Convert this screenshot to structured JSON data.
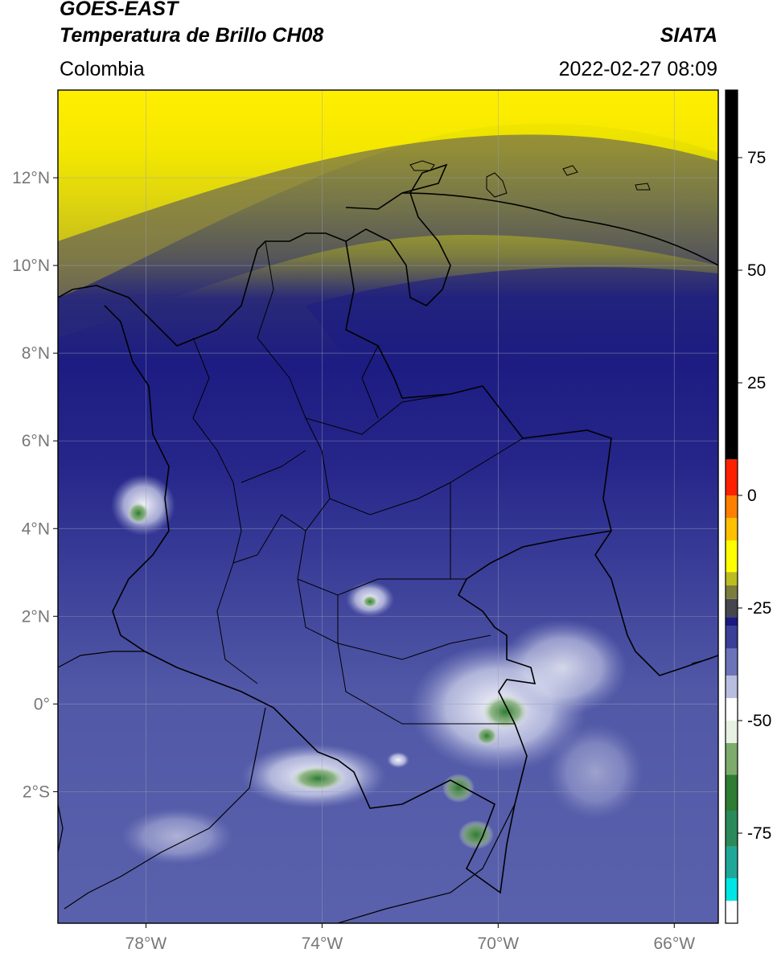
{
  "header": {
    "satellite": "GOES-EAST",
    "product": "Temperatura de Brillo CH08",
    "organization": "SIATA",
    "region": "Colombia",
    "datetime": "2022-02-27 08:09"
  },
  "map": {
    "lon_range": [
      -80,
      -65
    ],
    "lat_range": [
      -5,
      14
    ],
    "lat_ticks": [
      {
        "value": 12,
        "label": "12°N"
      },
      {
        "value": 10,
        "label": "10°N"
      },
      {
        "value": 8,
        "label": "8°N"
      },
      {
        "value": 6,
        "label": "6°N"
      },
      {
        "value": 4,
        "label": "4°N"
      },
      {
        "value": 2,
        "label": "2°N"
      },
      {
        "value": 0,
        "label": "0°"
      },
      {
        "value": -2,
        "label": "2°S"
      }
    ],
    "lon_ticks": [
      {
        "value": -78,
        "label": "78°W"
      },
      {
        "value": -74,
        "label": "74°W"
      },
      {
        "value": -70,
        "label": "70°W"
      },
      {
        "value": -66,
        "label": "66°W"
      }
    ],
    "gridlines": true
  },
  "colorbar": {
    "range": [
      -95,
      90
    ],
    "ticks": [
      {
        "value": 75,
        "label": "75"
      },
      {
        "value": 50,
        "label": "50"
      },
      {
        "value": 25,
        "label": "25"
      },
      {
        "value": 0,
        "label": "0"
      },
      {
        "value": -25,
        "label": "-25"
      },
      {
        "value": -50,
        "label": "-50"
      },
      {
        "value": -75,
        "label": "-75"
      }
    ],
    "segments": [
      {
        "from": -95,
        "to": -90,
        "color": "#ffffff"
      },
      {
        "from": -90,
        "to": -85,
        "color": "#00e5e5"
      },
      {
        "from": -85,
        "to": -78,
        "color": "#1fa89a"
      },
      {
        "from": -78,
        "to": -70,
        "color": "#2b8a5a"
      },
      {
        "from": -70,
        "to": -62,
        "color": "#2e7d32"
      },
      {
        "from": -62,
        "to": -55,
        "color": "#7cab6c"
      },
      {
        "from": -55,
        "to": -50,
        "color": "#e8f0e4"
      },
      {
        "from": -50,
        "to": -45,
        "color": "#ffffff"
      },
      {
        "from": -45,
        "to": -40,
        "color": "#b8bde0"
      },
      {
        "from": -40,
        "to": -34,
        "color": "#6d73b8"
      },
      {
        "from": -34,
        "to": -29,
        "color": "#3b3f98"
      },
      {
        "from": -29,
        "to": -27,
        "color": "#1a1a80"
      },
      {
        "from": -27,
        "to": -23,
        "color": "#46464e"
      },
      {
        "from": -23,
        "to": -20,
        "color": "#7c7c3c"
      },
      {
        "from": -20,
        "to": -17,
        "color": "#bcbc20"
      },
      {
        "from": -17,
        "to": -10,
        "color": "#ffff00"
      },
      {
        "from": -10,
        "to": -5,
        "color": "#ffc000"
      },
      {
        "from": -5,
        "to": 0,
        "color": "#ff8000"
      },
      {
        "from": 0,
        "to": 8,
        "color": "#ff2000"
      },
      {
        "from": 8,
        "to": 90,
        "color": "#000000"
      }
    ]
  },
  "colors": {
    "cloud_free_deep": "#1c1c82",
    "mid_level": "#4a4f9e",
    "cold_tops": "#ffffff",
    "dry_warm": "#ffea00",
    "border": "#000000",
    "grid": "#9aa0b8"
  }
}
